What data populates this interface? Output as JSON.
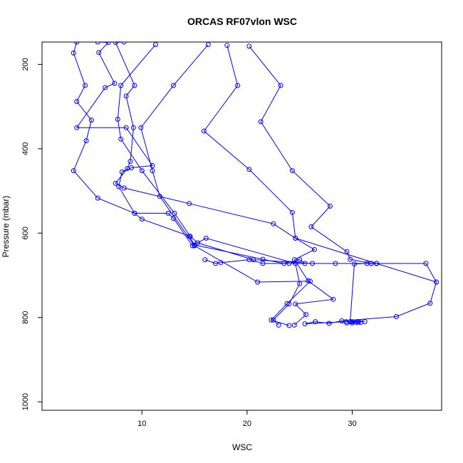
{
  "chart_data": {
    "type": "line",
    "title": "ORCAS RF07vlon WSC",
    "xlabel": "WSC",
    "ylabel": "Pressure (mbar)",
    "xlim": [
      0.5,
      38.5
    ],
    "ylim": [
      1020,
      147
    ],
    "y_reversed": true,
    "x_ticks": [
      10,
      20,
      30
    ],
    "y_ticks": [
      200,
      400,
      600,
      800,
      1000
    ],
    "grid": false,
    "marker": "open-circle",
    "series": [
      {
        "color": "#0000ff",
        "points": [
          [
            3.8,
            147
          ],
          [
            3.5,
            173
          ],
          [
            4.6,
            250
          ],
          [
            3.8,
            288
          ],
          [
            5.2,
            332
          ],
          [
            4.7,
            381
          ],
          [
            3.5,
            452
          ],
          [
            5.8,
            517
          ],
          [
            9.3,
            553
          ],
          [
            10.0,
            567
          ],
          [
            14.5,
            607
          ],
          [
            15.0,
            628
          ],
          [
            21.5,
            662
          ],
          [
            23.5,
            672
          ],
          [
            25.0,
            663
          ],
          [
            25.5,
            672
          ],
          [
            24.0,
            672
          ],
          [
            21.5,
            672
          ],
          [
            20.2,
            663
          ],
          [
            17.5,
            670
          ],
          [
            17.0,
            672
          ],
          [
            16.0,
            663
          ]
        ]
      },
      {
        "color": "#0000ff",
        "points": [
          [
            5.8,
            147
          ],
          [
            6.8,
            148
          ],
          [
            5.9,
            172
          ],
          [
            7.4,
            245
          ],
          [
            6.5,
            255
          ],
          [
            3.8,
            350
          ],
          [
            8.5,
            350
          ],
          [
            11.0,
            440
          ],
          [
            9.0,
            445
          ],
          [
            8.1,
            455
          ],
          [
            7.8,
            490
          ],
          [
            9.3,
            553
          ],
          [
            12.5,
            553
          ],
          [
            13.0,
            565
          ],
          [
            14.8,
            630
          ],
          [
            16.1,
            612
          ],
          [
            24.6,
            672
          ],
          [
            25.0,
            720
          ],
          [
            24.0,
            768
          ],
          [
            22.5,
            806
          ],
          [
            23.0,
            818
          ]
        ]
      },
      {
        "color": "#0000ff",
        "points": [
          [
            8.3,
            147
          ],
          [
            7.5,
            148
          ],
          [
            9.3,
            250
          ],
          [
            8.5,
            275
          ],
          [
            9.2,
            350
          ],
          [
            8.9,
            430
          ],
          [
            8.6,
            447
          ],
          [
            7.5,
            482
          ],
          [
            8.3,
            493
          ],
          [
            14.5,
            530
          ],
          [
            22.5,
            578
          ],
          [
            24.6,
            612
          ],
          [
            26.4,
            639
          ],
          [
            24.5,
            663
          ],
          [
            25.8,
            713
          ],
          [
            28.2,
            757
          ],
          [
            24.6,
            768
          ],
          [
            25.6,
            793
          ],
          [
            24.5,
            818
          ]
        ]
      },
      {
        "color": "#0000ff",
        "points": [
          [
            11.3,
            153
          ],
          [
            8.0,
            250
          ],
          [
            7.7,
            330
          ],
          [
            8.0,
            377
          ],
          [
            10.0,
            452
          ],
          [
            13.1,
            553
          ],
          [
            14.6,
            608
          ],
          [
            15.3,
            623
          ],
          [
            20.6,
            663
          ],
          [
            26.2,
            672
          ],
          [
            28.4,
            672
          ],
          [
            31.8,
            672
          ],
          [
            32.3,
            672
          ],
          [
            37.0,
            672
          ],
          [
            38.0,
            716
          ],
          [
            37.4,
            766
          ],
          [
            34.2,
            798
          ],
          [
            29.0,
            808
          ],
          [
            27.8,
            814
          ],
          [
            26.5,
            810
          ],
          [
            25.5,
            815
          ],
          [
            29.4,
            810
          ],
          [
            30.0,
            810
          ],
          [
            30.5,
            810
          ],
          [
            31.2,
            810
          ]
        ]
      },
      {
        "color": "#0000ff",
        "points": [
          [
            16.3,
            153
          ],
          [
            13.0,
            250
          ],
          [
            9.9,
            350
          ],
          [
            11.0,
            452
          ],
          [
            11.7,
            513
          ],
          [
            15.0,
            630
          ],
          [
            21.0,
            716
          ],
          [
            26.0,
            714
          ],
          [
            23.8,
            767
          ],
          [
            22.3,
            806
          ],
          [
            24.0,
            819
          ]
        ]
      },
      {
        "color": "#0000ff",
        "points": [
          [
            18.1,
            155
          ],
          [
            19.1,
            250
          ],
          [
            15.9,
            358
          ],
          [
            20.2,
            449
          ],
          [
            24.3,
            551
          ],
          [
            24.6,
            612
          ],
          [
            32.3,
            672
          ],
          [
            31.4,
            672
          ],
          [
            30.2,
            673
          ],
          [
            29.8,
            810
          ],
          [
            30.4,
            812
          ],
          [
            30.6,
            811
          ],
          [
            30.0,
            813
          ],
          [
            29.5,
            813
          ],
          [
            30.8,
            812
          ]
        ]
      },
      {
        "color": "#0000ff",
        "points": [
          [
            20.2,
            157
          ],
          [
            23.2,
            250
          ],
          [
            21.3,
            336
          ],
          [
            24.3,
            452
          ],
          [
            27.9,
            536
          ],
          [
            26.1,
            585
          ],
          [
            29.5,
            644
          ],
          [
            29.8,
            662
          ],
          [
            31.8,
            672
          ],
          [
            32.3,
            672
          ],
          [
            38.0,
            716
          ]
        ]
      }
    ]
  }
}
